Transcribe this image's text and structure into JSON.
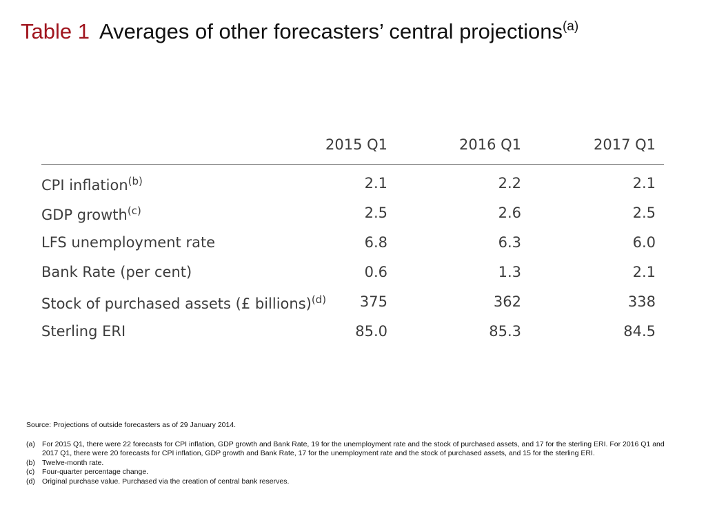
{
  "title": {
    "number": "Table 1",
    "text": "Averages of other forecasters’ central projections",
    "note_ref": "(a)"
  },
  "table": {
    "columns": [
      "2015 Q1",
      "2016 Q1",
      "2017 Q1"
    ],
    "rows": [
      {
        "label": "CPI inflation",
        "note": "(b)",
        "values": [
          "2.1",
          "2.2",
          "2.1"
        ]
      },
      {
        "label": "GDP growth",
        "note": "(c)",
        "values": [
          "2.5",
          "2.6",
          "2.5"
        ]
      },
      {
        "label": "LFS unemployment rate",
        "note": "",
        "values": [
          "6.8",
          "6.3",
          "6.0"
        ]
      },
      {
        "label": "Bank Rate (per cent)",
        "note": "",
        "values": [
          "0.6",
          "1.3",
          "2.1"
        ]
      },
      {
        "label": "Stock of purchased assets (£ billions)",
        "note": "(d)",
        "values": [
          "375",
          "362",
          "338"
        ]
      },
      {
        "label": "Sterling ERI",
        "note": "",
        "values": [
          "85.0",
          "85.3",
          "84.5"
        ]
      }
    ]
  },
  "source": "Source: Projections of outside forecasters as of 29 January 2014.",
  "footnotes": [
    {
      "tag": "(a)",
      "text": "For 2015 Q1, there were 22 forecasts for CPI inflation, GDP growth and Bank Rate, 19 for the unemployment rate and the stock of purchased assets, and 17 for the sterling ERI. For 2016 Q1 and 2017 Q1, there were 20 forecasts for CPI inflation, GDP growth and Bank Rate, 17 for the unemployment rate and the stock of purchased assets, and 15 for the sterling ERI."
    },
    {
      "tag": "(b)",
      "text": "Twelve-month rate."
    },
    {
      "tag": "(c)",
      "text": "Four-quarter percentage change."
    },
    {
      "tag": "(d)",
      "text": "Original purchase value.  Purchased via the creation of central bank reserves."
    }
  ]
}
